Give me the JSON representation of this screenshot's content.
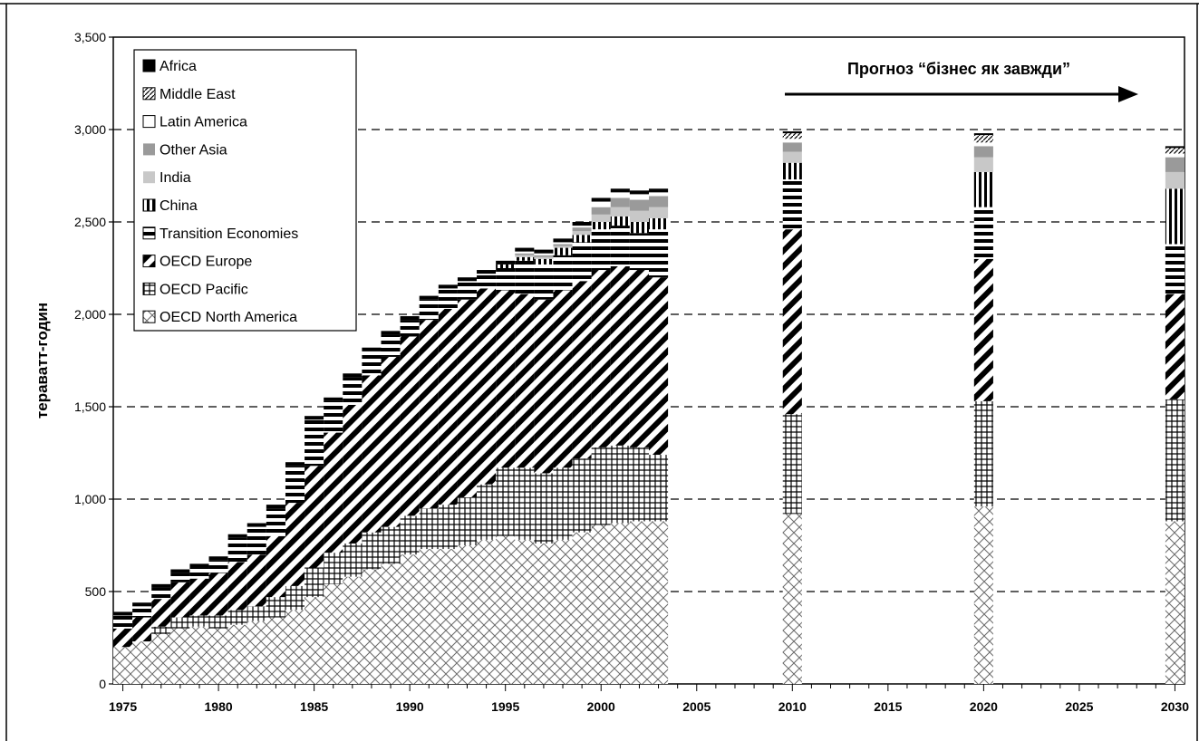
{
  "chart_data": {
    "type": "bar",
    "stacked": true,
    "title": "",
    "xlabel": "",
    "ylabel": "тераватт-годин",
    "ylim": [
      0,
      3500
    ],
    "yticks": [
      0,
      500,
      1000,
      1500,
      2000,
      2500,
      3000,
      3500
    ],
    "ytick_labels": [
      "0",
      "500",
      "1,000",
      "1,500",
      "2,000",
      "2,500",
      "3,000",
      "3,500"
    ],
    "xlim": [
      1974.5,
      2030.5
    ],
    "xticks": [
      1975,
      1980,
      1985,
      1990,
      1995,
      2000,
      2005,
      2010,
      2015,
      2020,
      2025,
      2030
    ],
    "grid": "horizontal dashed at 500, 1000, 1500, 2000, 2500, 3000",
    "legend_position": "top-left",
    "annotation": {
      "text": "Прогноз “бізнес як завжди”",
      "arrow": "right",
      "from_x": 2010,
      "to_x": 2030,
      "y": 3220
    },
    "x": [
      1975,
      1976,
      1977,
      1978,
      1979,
      1980,
      1981,
      1982,
      1983,
      1984,
      1985,
      1986,
      1987,
      1988,
      1989,
      1990,
      1991,
      1992,
      1993,
      1994,
      1995,
      1996,
      1997,
      1998,
      1999,
      2000,
      2001,
      2002,
      2003,
      2010,
      2020,
      2030
    ],
    "series": [
      {
        "name": "OECD North America",
        "pattern": "crosshatch",
        "values": [
          200,
          230,
          270,
          300,
          310,
          300,
          320,
          340,
          360,
          400,
          470,
          540,
          580,
          620,
          650,
          700,
          730,
          730,
          750,
          780,
          800,
          780,
          760,
          780,
          820,
          860,
          870,
          880,
          880,
          920,
          960,
          880
        ]
      },
      {
        "name": "OECD Pacific",
        "pattern": "grid",
        "values": [
          0,
          0,
          40,
          60,
          60,
          70,
          80,
          80,
          110,
          130,
          160,
          170,
          180,
          200,
          200,
          210,
          220,
          240,
          260,
          300,
          370,
          390,
          380,
          390,
          400,
          420,
          420,
          400,
          360,
          540,
          570,
          660
        ]
      },
      {
        "name": "OECD Europe",
        "pattern": "diagonal",
        "values": [
          100,
          130,
          150,
          190,
          200,
          230,
          260,
          280,
          330,
          450,
          550,
          650,
          750,
          850,
          920,
          970,
          1020,
          1060,
          1070,
          1060,
          960,
          940,
          940,
          960,
          960,
          960,
          970,
          960,
          960,
          1000,
          770,
          570
        ]
      },
      {
        "name": "Transition Economies",
        "pattern": "horizontal",
        "values": [
          70,
          60,
          60,
          50,
          60,
          70,
          130,
          150,
          150,
          200,
          250,
          170,
          150,
          130,
          120,
          90,
          110,
          110,
          100,
          80,
          120,
          180,
          190,
          190,
          210,
          220,
          220,
          200,
          260,
          270,
          280,
          270
        ]
      },
      {
        "name": "China",
        "pattern": "vertical",
        "values": [
          0,
          0,
          0,
          0,
          0,
          0,
          0,
          0,
          0,
          0,
          0,
          0,
          0,
          0,
          0,
          0,
          0,
          0,
          0,
          0,
          20,
          20,
          30,
          40,
          40,
          40,
          50,
          60,
          60,
          90,
          190,
          300
        ]
      },
      {
        "name": "India",
        "pattern": "lightgray",
        "values": [
          0,
          0,
          0,
          0,
          0,
          0,
          0,
          0,
          0,
          0,
          0,
          0,
          0,
          0,
          0,
          0,
          0,
          0,
          0,
          0,
          0,
          10,
          10,
          10,
          20,
          40,
          50,
          60,
          60,
          60,
          80,
          90
        ]
      },
      {
        "name": "Other Asia",
        "pattern": "darkgray",
        "values": [
          0,
          0,
          0,
          0,
          0,
          0,
          0,
          0,
          0,
          0,
          0,
          0,
          0,
          0,
          0,
          0,
          0,
          0,
          0,
          0,
          0,
          10,
          10,
          10,
          20,
          40,
          50,
          60,
          60,
          50,
          60,
          80
        ]
      },
      {
        "name": "Latin America",
        "pattern": "white",
        "values": [
          0,
          0,
          0,
          0,
          0,
          0,
          0,
          0,
          0,
          0,
          0,
          0,
          0,
          0,
          0,
          0,
          0,
          0,
          0,
          0,
          0,
          10,
          10,
          10,
          10,
          30,
          30,
          30,
          20,
          20,
          20,
          20
        ]
      },
      {
        "name": "Middle East",
        "pattern": "boxdiagonal",
        "values": [
          0,
          0,
          0,
          0,
          0,
          0,
          0,
          0,
          0,
          0,
          0,
          0,
          0,
          0,
          0,
          0,
          0,
          0,
          0,
          0,
          0,
          0,
          0,
          0,
          0,
          0,
          0,
          0,
          0,
          30,
          40,
          30
        ]
      },
      {
        "name": "Africa",
        "pattern": "solid",
        "values": [
          20,
          20,
          20,
          20,
          20,
          20,
          20,
          20,
          20,
          20,
          20,
          20,
          20,
          20,
          20,
          20,
          20,
          20,
          20,
          20,
          20,
          20,
          20,
          20,
          20,
          20,
          20,
          20,
          20,
          10,
          10,
          10
        ]
      }
    ],
    "legend_order": [
      "Africa",
      "Middle East",
      "Latin America",
      "Other Asia",
      "India",
      "China",
      "Transition Economies",
      "OECD Europe",
      "OECD Pacific",
      "OECD North America"
    ]
  },
  "colors": {
    "black": "#000000",
    "white": "#ffffff",
    "light_gray": "#c8c8c8",
    "dark_gray": "#9a9a9a",
    "grid": "#000000"
  }
}
